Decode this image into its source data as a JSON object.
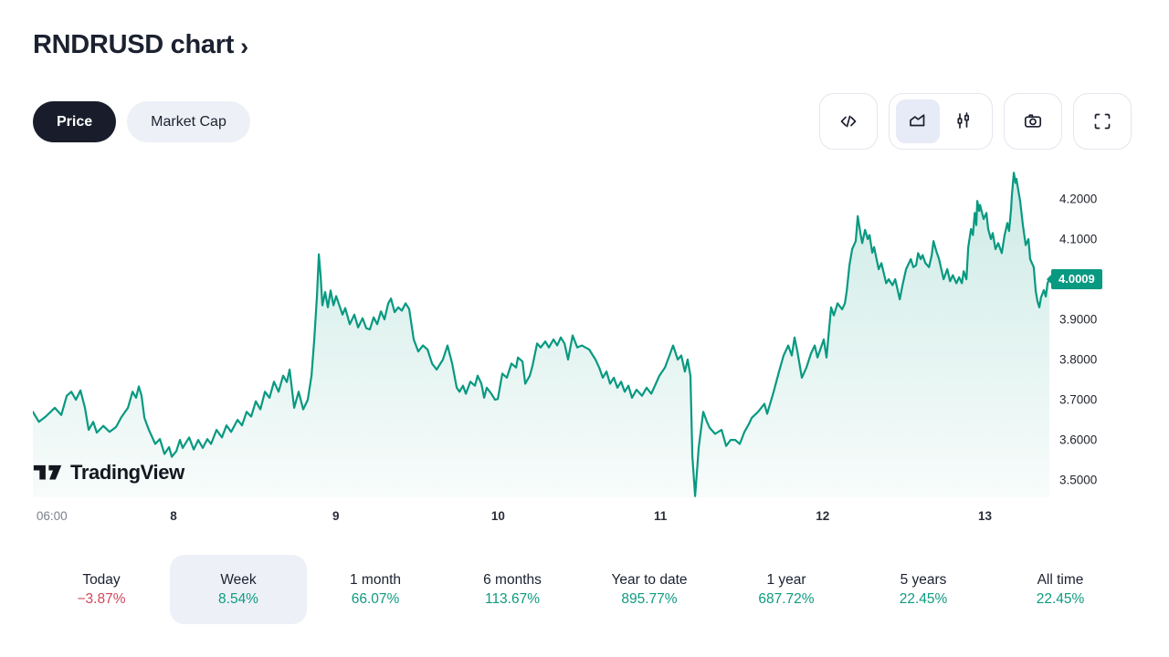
{
  "header": {
    "title": "RNDRUSD chart",
    "chevron": "›"
  },
  "toggle": {
    "price_label": "Price",
    "market_cap_label": "Market Cap"
  },
  "toolbar": {
    "icons": [
      {
        "name": "code-icon",
        "selected": false
      },
      {
        "name": "area-chart-icon",
        "selected": true
      },
      {
        "name": "candlestick-icon",
        "selected": false
      },
      {
        "name": "camera-icon",
        "selected": false
      },
      {
        "name": "fullscreen-icon",
        "selected": false
      }
    ]
  },
  "watermark": {
    "text": "TradingView"
  },
  "colors": {
    "line_green": "#089981",
    "area_fill_top": "rgba(8,153,129,0.20)",
    "area_fill_bottom": "rgba(8,153,129,0.03)",
    "positive_green": "#0e9b80",
    "negative_red": "#d0455a",
    "dark_pill": "#191d2b",
    "selected_pill": "#edf0f7",
    "price_tag_bg": "#089981"
  },
  "chart_data": {
    "type": "area",
    "symbol": "RNDRUSD",
    "current_price": 4.0009,
    "current_price_label": "4.0009",
    "line_color": "#089981",
    "grid": false,
    "x_range": [
      7.133,
      13.397
    ],
    "y_range": [
      3.457,
      4.275
    ],
    "x_axis": {
      "unit": "day of month",
      "ticks": [
        {
          "pos": 7.25,
          "label": "06:00",
          "muted": true
        },
        {
          "pos": 8,
          "label": "8"
        },
        {
          "pos": 9,
          "label": "9"
        },
        {
          "pos": 10,
          "label": "10"
        },
        {
          "pos": 11,
          "label": "11"
        },
        {
          "pos": 12,
          "label": "12"
        },
        {
          "pos": 13,
          "label": "13"
        }
      ]
    },
    "y_axis": {
      "unit": "USD",
      "ticks": [
        {
          "value": 4.2,
          "label": "4.2000"
        },
        {
          "value": 4.1,
          "label": "4.1000"
        },
        {
          "value": 3.9,
          "label": "3.9000"
        },
        {
          "value": 3.8,
          "label": "3.8000"
        },
        {
          "value": 3.7,
          "label": "3.7000"
        },
        {
          "value": 3.6,
          "label": "3.6000"
        },
        {
          "value": 3.5,
          "label": "3.5000"
        }
      ]
    },
    "points": [
      [
        7.133,
        3.67
      ],
      [
        7.17,
        3.645
      ],
      [
        7.212,
        3.658
      ],
      [
        7.268,
        3.68
      ],
      [
        7.308,
        3.662
      ],
      [
        7.342,
        3.71
      ],
      [
        7.37,
        3.72
      ],
      [
        7.398,
        3.7
      ],
      [
        7.426,
        3.723
      ],
      [
        7.454,
        3.68
      ],
      [
        7.477,
        3.625
      ],
      [
        7.505,
        3.645
      ],
      [
        7.527,
        3.618
      ],
      [
        7.567,
        3.635
      ],
      [
        7.606,
        3.62
      ],
      [
        7.645,
        3.632
      ],
      [
        7.679,
        3.657
      ],
      [
        7.719,
        3.68
      ],
      [
        7.747,
        3.72
      ],
      [
        7.769,
        3.705
      ],
      [
        7.786,
        3.733
      ],
      [
        7.803,
        3.71
      ],
      [
        7.82,
        3.655
      ],
      [
        7.848,
        3.625
      ],
      [
        7.887,
        3.59
      ],
      [
        7.916,
        3.602
      ],
      [
        7.944,
        3.565
      ],
      [
        7.972,
        3.582
      ],
      [
        7.989,
        3.558
      ],
      [
        8.017,
        3.572
      ],
      [
        8.039,
        3.6
      ],
      [
        8.056,
        3.58
      ],
      [
        8.096,
        3.606
      ],
      [
        8.124,
        3.576
      ],
      [
        8.152,
        3.6
      ],
      [
        8.18,
        3.58
      ],
      [
        8.208,
        3.602
      ],
      [
        8.231,
        3.59
      ],
      [
        8.265,
        3.625
      ],
      [
        8.298,
        3.606
      ],
      [
        8.326,
        3.636
      ],
      [
        8.355,
        3.62
      ],
      [
        8.394,
        3.65
      ],
      [
        8.422,
        3.636
      ],
      [
        8.45,
        3.67
      ],
      [
        8.478,
        3.658
      ],
      [
        8.507,
        3.696
      ],
      [
        8.535,
        3.676
      ],
      [
        8.563,
        3.72
      ],
      [
        8.591,
        3.705
      ],
      [
        8.619,
        3.745
      ],
      [
        8.647,
        3.72
      ],
      [
        8.675,
        3.76
      ],
      [
        8.698,
        3.744
      ],
      [
        8.715,
        3.775
      ],
      [
        8.743,
        3.68
      ],
      [
        8.771,
        3.72
      ],
      [
        8.799,
        3.676
      ],
      [
        8.827,
        3.7
      ],
      [
        8.85,
        3.76
      ],
      [
        8.867,
        3.85
      ],
      [
        8.884,
        3.96
      ],
      [
        8.895,
        4.062
      ],
      [
        8.906,
        4.01
      ],
      [
        8.917,
        3.935
      ],
      [
        8.934,
        3.968
      ],
      [
        8.951,
        3.93
      ],
      [
        8.968,
        3.972
      ],
      [
        8.985,
        3.935
      ],
      [
        9.002,
        3.958
      ],
      [
        9.019,
        3.938
      ],
      [
        9.041,
        3.912
      ],
      [
        9.058,
        3.928
      ],
      [
        9.086,
        3.888
      ],
      [
        9.114,
        3.912
      ],
      [
        9.137,
        3.88
      ],
      [
        9.165,
        3.903
      ],
      [
        9.188,
        3.878
      ],
      [
        9.21,
        3.875
      ],
      [
        9.233,
        3.905
      ],
      [
        9.255,
        3.888
      ],
      [
        9.278,
        3.92
      ],
      [
        9.3,
        3.9
      ],
      [
        9.323,
        3.94
      ],
      [
        9.34,
        3.952
      ],
      [
        9.362,
        3.918
      ],
      [
        9.385,
        3.93
      ],
      [
        9.407,
        3.922
      ],
      [
        9.43,
        3.94
      ],
      [
        9.452,
        3.926
      ],
      [
        9.48,
        3.85
      ],
      [
        9.508,
        3.82
      ],
      [
        9.537,
        3.835
      ],
      [
        9.565,
        3.825
      ],
      [
        9.593,
        3.79
      ],
      [
        9.621,
        3.775
      ],
      [
        9.66,
        3.8
      ],
      [
        9.688,
        3.835
      ],
      [
        9.717,
        3.79
      ],
      [
        9.745,
        3.73
      ],
      [
        9.762,
        3.72
      ],
      [
        9.784,
        3.735
      ],
      [
        9.801,
        3.715
      ],
      [
        9.829,
        3.745
      ],
      [
        9.857,
        3.735
      ],
      [
        9.874,
        3.76
      ],
      [
        9.897,
        3.74
      ],
      [
        9.914,
        3.705
      ],
      [
        9.93,
        3.73
      ],
      [
        9.958,
        3.715
      ],
      [
        9.981,
        3.7
      ],
      [
        9.998,
        3.702
      ],
      [
        10.026,
        3.765
      ],
      [
        10.054,
        3.755
      ],
      [
        10.082,
        3.79
      ],
      [
        10.111,
        3.78
      ],
      [
        10.122,
        3.805
      ],
      [
        10.15,
        3.795
      ],
      [
        10.167,
        3.74
      ],
      [
        10.195,
        3.76
      ],
      [
        10.212,
        3.785
      ],
      [
        10.24,
        3.84
      ],
      [
        10.262,
        3.83
      ],
      [
        10.291,
        3.845
      ],
      [
        10.313,
        3.83
      ],
      [
        10.341,
        3.85
      ],
      [
        10.364,
        3.835
      ],
      [
        10.386,
        3.855
      ],
      [
        10.409,
        3.84
      ],
      [
        10.431,
        3.8
      ],
      [
        10.459,
        3.86
      ],
      [
        10.488,
        3.83
      ],
      [
        10.516,
        3.835
      ],
      [
        10.538,
        3.83
      ],
      [
        10.561,
        3.825
      ],
      [
        10.6,
        3.8
      ],
      [
        10.623,
        3.78
      ],
      [
        10.645,
        3.755
      ],
      [
        10.668,
        3.77
      ],
      [
        10.69,
        3.74
      ],
      [
        10.713,
        3.755
      ],
      [
        10.735,
        3.73
      ],
      [
        10.758,
        3.745
      ],
      [
        10.78,
        3.72
      ],
      [
        10.803,
        3.735
      ],
      [
        10.825,
        3.705
      ],
      [
        10.853,
        3.725
      ],
      [
        10.887,
        3.71
      ],
      [
        10.915,
        3.73
      ],
      [
        10.944,
        3.715
      ],
      [
        10.972,
        3.74
      ],
      [
        10.994,
        3.76
      ],
      [
        11.028,
        3.78
      ],
      [
        11.056,
        3.81
      ],
      [
        11.078,
        3.835
      ],
      [
        11.107,
        3.8
      ],
      [
        11.129,
        3.81
      ],
      [
        11.151,
        3.77
      ],
      [
        11.168,
        3.8
      ],
      [
        11.185,
        3.76
      ],
      [
        11.197,
        3.56
      ],
      [
        11.214,
        3.46
      ],
      [
        11.225,
        3.52
      ],
      [
        11.236,
        3.58
      ],
      [
        11.264,
        3.67
      ],
      [
        11.287,
        3.645
      ],
      [
        11.304,
        3.63
      ],
      [
        11.337,
        3.615
      ],
      [
        11.377,
        3.625
      ],
      [
        11.405,
        3.585
      ],
      [
        11.433,
        3.6
      ],
      [
        11.461,
        3.6
      ],
      [
        11.489,
        3.59
      ],
      [
        11.518,
        3.62
      ],
      [
        11.546,
        3.64
      ],
      [
        11.563,
        3.655
      ],
      [
        11.602,
        3.67
      ],
      [
        11.641,
        3.69
      ],
      [
        11.658,
        3.665
      ],
      [
        11.698,
        3.72
      ],
      [
        11.731,
        3.77
      ],
      [
        11.759,
        3.81
      ],
      [
        11.788,
        3.835
      ],
      [
        11.81,
        3.81
      ],
      [
        11.827,
        3.855
      ],
      [
        11.844,
        3.82
      ],
      [
        11.872,
        3.755
      ],
      [
        11.9,
        3.78
      ],
      [
        11.928,
        3.815
      ],
      [
        11.951,
        3.835
      ],
      [
        11.968,
        3.805
      ],
      [
        12.007,
        3.85
      ],
      [
        12.024,
        3.805
      ],
      [
        12.052,
        3.93
      ],
      [
        12.069,
        3.91
      ],
      [
        12.092,
        3.94
      ],
      [
        12.12,
        3.925
      ],
      [
        12.137,
        3.94
      ],
      [
        12.148,
        3.97
      ],
      [
        12.165,
        4.035
      ],
      [
        12.182,
        4.075
      ],
      [
        12.204,
        4.095
      ],
      [
        12.216,
        4.157
      ],
      [
        12.232,
        4.116
      ],
      [
        12.244,
        4.09
      ],
      [
        12.261,
        4.123
      ],
      [
        12.278,
        4.1
      ],
      [
        12.289,
        4.11
      ],
      [
        12.306,
        4.066
      ],
      [
        12.317,
        4.08
      ],
      [
        12.345,
        4.025
      ],
      [
        12.362,
        4.04
      ],
      [
        12.391,
        3.99
      ],
      [
        12.407,
        4.0
      ],
      [
        12.43,
        3.985
      ],
      [
        12.447,
        4.0
      ],
      [
        12.475,
        3.95
      ],
      [
        12.492,
        3.985
      ],
      [
        12.514,
        4.025
      ],
      [
        12.543,
        4.05
      ],
      [
        12.559,
        4.03
      ],
      [
        12.576,
        4.035
      ],
      [
        12.588,
        4.065
      ],
      [
        12.604,
        4.05
      ],
      [
        12.616,
        4.06
      ],
      [
        12.633,
        4.04
      ],
      [
        12.655,
        4.03
      ],
      [
        12.672,
        4.06
      ],
      [
        12.683,
        4.095
      ],
      [
        12.7,
        4.07
      ],
      [
        12.717,
        4.05
      ],
      [
        12.745,
        4.0
      ],
      [
        12.768,
        4.025
      ],
      [
        12.785,
        3.995
      ],
      [
        12.802,
        4.01
      ],
      [
        12.824,
        3.99
      ],
      [
        12.841,
        4.005
      ],
      [
        12.858,
        3.99
      ],
      [
        12.869,
        4.02
      ],
      [
        12.886,
        4.0
      ],
      [
        12.897,
        4.08
      ],
      [
        12.914,
        4.125
      ],
      [
        12.926,
        4.11
      ],
      [
        12.937,
        4.165
      ],
      [
        12.947,
        4.135
      ],
      [
        12.953,
        4.195
      ],
      [
        12.964,
        4.17
      ],
      [
        12.97,
        4.185
      ],
      [
        12.992,
        4.15
      ],
      [
        13.009,
        4.165
      ],
      [
        13.02,
        4.125
      ],
      [
        13.037,
        4.1
      ],
      [
        13.048,
        4.115
      ],
      [
        13.065,
        4.075
      ],
      [
        13.082,
        4.09
      ],
      [
        13.104,
        4.065
      ],
      [
        13.121,
        4.11
      ],
      [
        13.138,
        4.14
      ],
      [
        13.149,
        4.12
      ],
      [
        13.161,
        4.175
      ],
      [
        13.166,
        4.21
      ],
      [
        13.178,
        4.265
      ],
      [
        13.189,
        4.24
      ],
      [
        13.194,
        4.25
      ],
      [
        13.217,
        4.195
      ],
      [
        13.234,
        4.135
      ],
      [
        13.251,
        4.085
      ],
      [
        13.268,
        4.1
      ],
      [
        13.279,
        4.05
      ],
      [
        13.301,
        4.03
      ],
      [
        13.313,
        3.97
      ],
      [
        13.324,
        3.945
      ],
      [
        13.335,
        3.93
      ],
      [
        13.346,
        3.955
      ],
      [
        13.363,
        3.973
      ],
      [
        13.375,
        3.957
      ],
      [
        13.386,
        3.99
      ],
      [
        13.397,
        4.001
      ]
    ]
  },
  "periods": [
    {
      "label": "Today",
      "value": "−3.87%",
      "direction": "down",
      "selected": false
    },
    {
      "label": "Week",
      "value": "8.54%",
      "direction": "up",
      "selected": true
    },
    {
      "label": "1 month",
      "value": "66.07%",
      "direction": "up",
      "selected": false
    },
    {
      "label": "6 months",
      "value": "113.67%",
      "direction": "up",
      "selected": false
    },
    {
      "label": "Year to date",
      "value": "895.77%",
      "direction": "up",
      "selected": false
    },
    {
      "label": "1 year",
      "value": "687.72%",
      "direction": "up",
      "selected": false
    },
    {
      "label": "5 years",
      "value": "22.45%",
      "direction": "up",
      "selected": false
    },
    {
      "label": "All time",
      "value": "22.45%",
      "direction": "up",
      "selected": false
    }
  ]
}
